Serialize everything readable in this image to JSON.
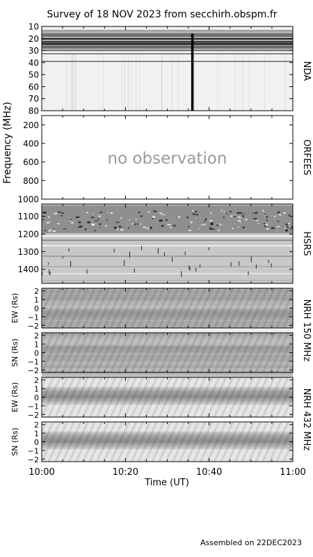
{
  "chart_data": {
    "type": "heatmap",
    "title": "Survey of 18 NOV 2023 from secchirh.obspm.fr",
    "footer": "Assembled on 22DEC2023",
    "ylabel": "Frequency (MHz)",
    "xlabel": "Time (UT)",
    "xticks": [
      "10:00",
      "10:20",
      "10:40",
      "11:00"
    ],
    "xlim": [
      "10:00",
      "11:00"
    ],
    "panels": [
      {
        "label": "NDA",
        "kind": "spectrogram",
        "ylim": [
          10,
          80
        ],
        "ticks": [
          10,
          20,
          30,
          40,
          50,
          60,
          70,
          80
        ],
        "features": {
          "strong_bands": [
            16,
            19,
            21,
            24,
            27,
            30,
            37
          ],
          "vertical_burst_time": "10:36"
        }
      },
      {
        "label": "ORFEES",
        "kind": "no-data",
        "ylim": [
          100,
          1000
        ],
        "ticks": [
          200,
          400,
          600,
          800,
          1000
        ],
        "message": "no observation"
      },
      {
        "label": "HSRS",
        "kind": "spectrogram",
        "ylim": [
          1030,
          1480
        ],
        "ticks": [
          1100,
          1200,
          1300,
          1400
        ]
      },
      {
        "label": "EW (Rs)",
        "kind": "nrh",
        "ylim": [
          -2.3,
          2.3
        ],
        "ticks": [
          2,
          1,
          0,
          -1,
          -2
        ],
        "group": "NRH 150 MHz",
        "band": false
      },
      {
        "label": "SN (Rs)",
        "kind": "nrh",
        "ylim": [
          -2.3,
          2.3
        ],
        "ticks": [
          2,
          1,
          0,
          -1,
          -2
        ],
        "group": "NRH 150 MHz",
        "band": false
      },
      {
        "label": "EW (Rs)",
        "kind": "nrh",
        "ylim": [
          -2.3,
          2.3
        ],
        "ticks": [
          2,
          1,
          0,
          -1,
          -2
        ],
        "group": "NRH 432 MHz",
        "band": true
      },
      {
        "label": "SN (Rs)",
        "kind": "nrh",
        "ylim": [
          -2.3,
          2.3
        ],
        "ticks": [
          2,
          1,
          0,
          -1,
          -2
        ],
        "group": "NRH 432 MHz",
        "band": true
      }
    ],
    "right_labels": [
      "NDA",
      "ORFEES",
      "HSRS",
      "NRH 150 MHz",
      "NRH 432 MHz"
    ]
  }
}
